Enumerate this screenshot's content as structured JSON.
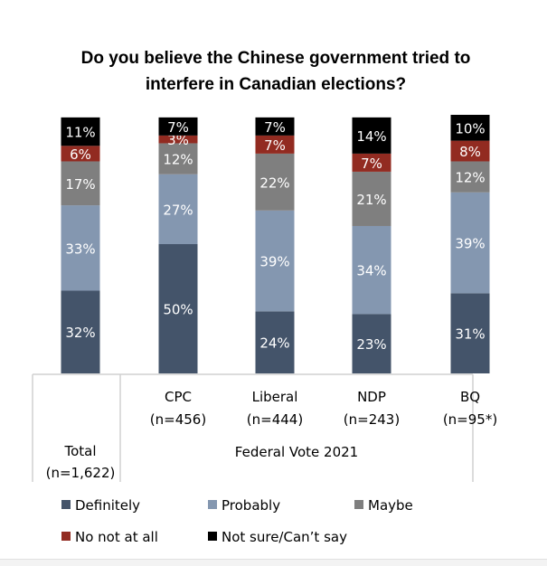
{
  "chart_data": {
    "type": "bar",
    "stacked": true,
    "title": [
      "Do you believe the Chinese government tried to",
      "interfere in Canadian elections?"
    ],
    "categories": [
      {
        "name": "Total",
        "n": "(n=1,622)"
      },
      {
        "name": "CPC",
        "n": "(n=456)"
      },
      {
        "name": "Liberal",
        "n": "(n=444)"
      },
      {
        "name": "NDP",
        "n": "(n=243)"
      },
      {
        "name": "BQ",
        "n": "(n=95*)"
      }
    ],
    "group_label": "Federal Vote 2021",
    "series": [
      {
        "name": "Definitely",
        "color": "#44546a",
        "values": [
          32,
          50,
          24,
          23,
          31
        ]
      },
      {
        "name": "Probably",
        "color": "#8497b0",
        "values": [
          33,
          27,
          39,
          34,
          39
        ]
      },
      {
        "name": "Maybe",
        "color": "#7f7f7f",
        "values": [
          17,
          12,
          22,
          21,
          12
        ]
      },
      {
        "name": "No not at all",
        "color": "#922b21",
        "values": [
          6,
          3,
          7,
          7,
          8
        ]
      },
      {
        "name": "Not sure/Can’t say",
        "color": "#000000",
        "values": [
          11,
          7,
          7,
          14,
          10
        ]
      }
    ],
    "value_suffix": "%",
    "ylim": [
      0,
      100
    ],
    "legend_position": "bottom"
  }
}
